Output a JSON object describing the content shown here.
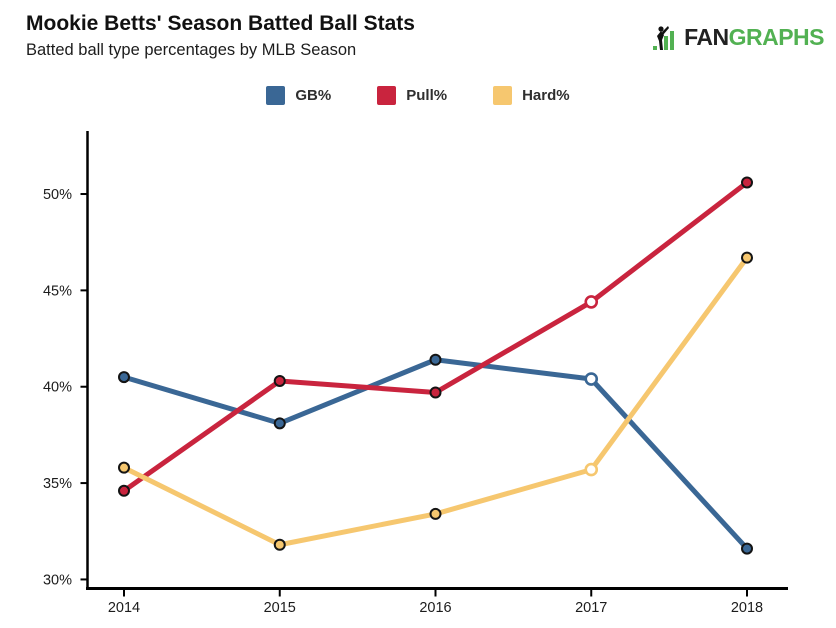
{
  "header": {
    "title": "Mookie Betts' Season Batted Ball Stats",
    "subtitle": "Batted ball type percentages by MLB Season"
  },
  "logo": {
    "text_dark": "FAN",
    "text_green": "GRAPHS",
    "green_color": "#52b152",
    "dark_color": "#222222"
  },
  "chart_data": {
    "type": "line",
    "title": "Mookie Betts' Season Batted Ball Stats",
    "subtitle": "Batted ball type percentages by MLB Season",
    "categories": [
      "2014",
      "2015",
      "2016",
      "2017",
      "2018"
    ],
    "series": [
      {
        "name": "GB%",
        "color": "#3a6795",
        "values": [
          40.5,
          38.1,
          41.4,
          40.4,
          31.6
        ],
        "open_marker_index": 3
      },
      {
        "name": "Pull%",
        "color": "#c9243e",
        "values": [
          34.6,
          40.3,
          39.7,
          44.4,
          50.6
        ],
        "open_marker_index": 3
      },
      {
        "name": "Hard%",
        "color": "#f6c76f",
        "values": [
          35.8,
          31.8,
          33.4,
          35.7,
          46.7
        ],
        "open_marker_index": 3
      }
    ],
    "yticks": [
      30,
      35,
      40,
      45,
      50
    ],
    "ytick_suffix": "%",
    "ylim": [
      29.53,
      53.27
    ],
    "xlabel": "",
    "ylabel": "",
    "grid": false,
    "legend_position": "top",
    "axis_color": "#000000",
    "tick_label_color": "#1c1c1c",
    "marker_outline_color": "#141414",
    "open_marker_fill": "#ffffff"
  }
}
